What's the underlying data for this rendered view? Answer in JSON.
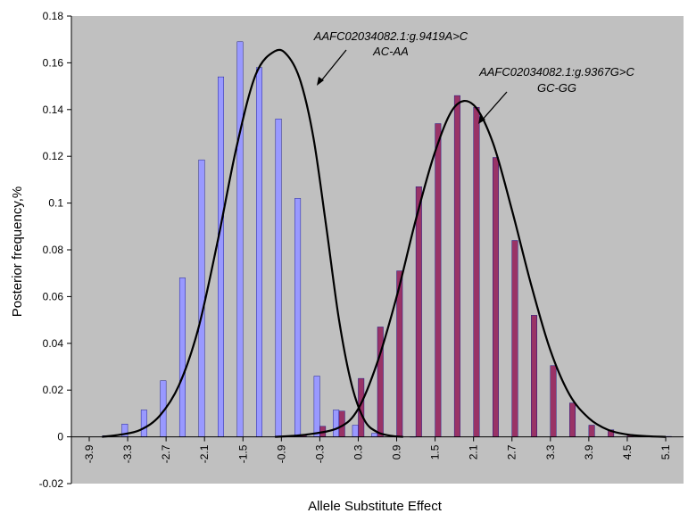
{
  "colors": {
    "plot_background": "#c0c0c0",
    "series_a_fill": "#9999ff",
    "series_b_fill": "#993366",
    "curve": "#000000",
    "bar_border": "#000080"
  },
  "chart_data": {
    "type": "bar",
    "xlabel": "Allele Substitute Effect",
    "ylabel": "Posterior frequency,%",
    "ylim": [
      -0.02,
      0.18
    ],
    "y_ticks": [
      "0.18",
      "0.16",
      "0.14",
      "0.12",
      "0.1",
      "0.08",
      "0.06",
      "0.04",
      "0.02",
      "0",
      "-0.02"
    ],
    "y_tick_values": [
      0.18,
      0.16,
      0.14,
      0.12,
      0.1,
      0.08,
      0.06,
      0.04,
      0.02,
      0,
      -0.02
    ],
    "x_tick_labels": [
      "-3.9",
      "-3.3",
      "-2.7",
      "-2.1",
      "-1.5",
      "-0.9",
      "-0.3",
      "0.3",
      "0.9",
      "1.5",
      "2.1",
      "2.7",
      "3.3",
      "3.9",
      "4.5",
      "5.1"
    ],
    "categories": [
      -3.9,
      -3.6,
      -3.3,
      -3.0,
      -2.7,
      -2.4,
      -2.1,
      -1.8,
      -1.5,
      -1.2,
      -0.9,
      -0.6,
      -0.3,
      0.0,
      0.3,
      0.6,
      0.9,
      1.2,
      1.5,
      1.8,
      2.1,
      2.4,
      2.7,
      3.0,
      3.3,
      3.6,
      3.9,
      4.2,
      4.5,
      4.8,
      5.1
    ],
    "grid": false,
    "legend": "none",
    "series": [
      {
        "color": "#9999ff",
        "values": [
          0.0,
          0.0005,
          0.0055,
          0.0115,
          0.024,
          0.068,
          0.1185,
          0.154,
          0.169,
          0.158,
          0.136,
          0.102,
          0.026,
          0.0115,
          0.005,
          0.0015,
          0.0003,
          0.0001,
          0,
          0,
          0,
          0,
          0,
          0,
          0,
          0,
          0,
          0,
          0,
          0,
          0
        ]
      },
      {
        "color": "#993366",
        "values": [
          0,
          0,
          0,
          0,
          0,
          0,
          0,
          0,
          0,
          0,
          0,
          0.0005,
          0.0045,
          0.011,
          0.025,
          0.047,
          0.071,
          0.107,
          0.134,
          0.146,
          0.141,
          0.1195,
          0.084,
          0.052,
          0.0305,
          0.0145,
          0.005,
          0.003,
          0.001,
          0.0005,
          0.0002
        ]
      }
    ],
    "curves": [
      {
        "x": [
          -3.7,
          -3.4,
          -3.1,
          -2.8,
          -2.5,
          -2.2,
          -1.9,
          -1.6,
          -1.3,
          -1.0,
          -0.8,
          -0.6,
          -0.4,
          -0.2,
          0.0,
          0.2,
          0.4,
          0.6,
          0.8,
          1.0
        ],
        "y": [
          0.0,
          0.001,
          0.003,
          0.009,
          0.022,
          0.046,
          0.083,
          0.124,
          0.155,
          0.165,
          0.163,
          0.152,
          0.128,
          0.09,
          0.05,
          0.022,
          0.007,
          0.002,
          0.0005,
          0.0
        ]
      },
      {
        "x": [
          -1.0,
          -0.5,
          0.0,
          0.3,
          0.6,
          0.9,
          1.2,
          1.5,
          1.8,
          2.1,
          2.4,
          2.7,
          3.0,
          3.3,
          3.6,
          3.9,
          4.2,
          4.5,
          4.8,
          5.1
        ],
        "y": [
          0.0,
          0.001,
          0.004,
          0.012,
          0.032,
          0.06,
          0.093,
          0.122,
          0.141,
          0.142,
          0.126,
          0.097,
          0.065,
          0.037,
          0.018,
          0.008,
          0.003,
          0.001,
          0.0003,
          0.0
        ]
      }
    ],
    "annotations": [
      {
        "line1": "AAFC02034082.1:g.9419A>C",
        "line2": "AC-AA"
      },
      {
        "line1": "AAFC02034082.1:g.9367G>C",
        "line2": "GC-GG"
      }
    ]
  }
}
